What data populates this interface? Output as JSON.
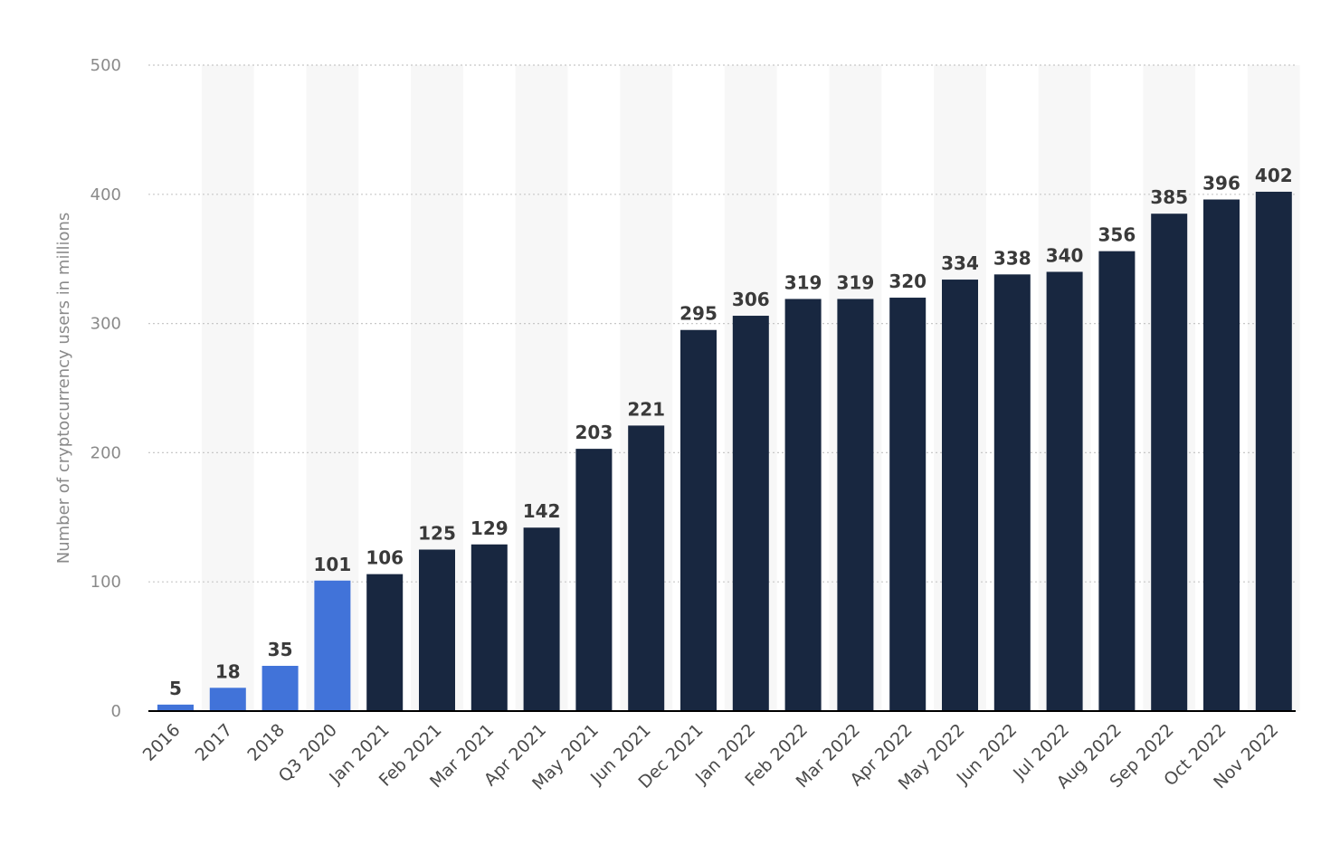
{
  "chart_data": {
    "type": "bar",
    "title": "",
    "xlabel": "",
    "ylabel": "Number of cryptocurrency users in millions",
    "ylim": [
      0,
      500
    ],
    "yticks": [
      0,
      100,
      200,
      300,
      400,
      500
    ],
    "grid": "horizontal dotted",
    "categories": [
      "2016",
      "2017",
      "2018",
      "Q3 2020",
      "Jan 2021",
      "Feb 2021",
      "Mar 2021",
      "Apr 2021",
      "May 2021",
      "Jun 2021",
      "Dec 2021",
      "Jan 2022",
      "Feb 2022",
      "Mar 2022",
      "Apr 2022",
      "May 2022",
      "Jun 2022",
      "Jul 2022",
      "Aug 2022",
      "Sep 2022",
      "Oct 2022",
      "Nov 2022"
    ],
    "values": [
      5,
      18,
      35,
      101,
      106,
      125,
      129,
      142,
      203,
      221,
      295,
      306,
      319,
      319,
      320,
      334,
      338,
      340,
      356,
      385,
      396,
      402
    ],
    "bar_colors": [
      "#4173d9",
      "#4173d9",
      "#4173d9",
      "#4173d9",
      "#182740",
      "#182740",
      "#182740",
      "#182740",
      "#182740",
      "#182740",
      "#182740",
      "#182740",
      "#182740",
      "#182740",
      "#182740",
      "#182740",
      "#182740",
      "#182740",
      "#182740",
      "#182740",
      "#182740",
      "#182740"
    ],
    "stripe_color": "#f7f7f7",
    "grid_color": "#c8c8c8",
    "axis_color": "#000000"
  }
}
